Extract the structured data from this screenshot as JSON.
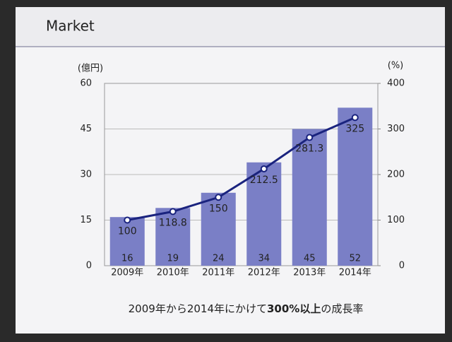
{
  "header": {
    "title": "Market"
  },
  "chart_data": {
    "type": "combo",
    "categories": [
      "2009年",
      "2010年",
      "2011年",
      "2012年",
      "2013年",
      "2014年"
    ],
    "series": [
      {
        "type": "bar",
        "color": "#7a7fc6",
        "values": [
          16,
          19,
          24,
          34,
          45,
          52
        ]
      },
      {
        "type": "line",
        "axis": "y2",
        "color": "#1a237e",
        "values": [
          100,
          118.8,
          150,
          212.5,
          281.3,
          325
        ]
      }
    ],
    "ylabel": "(億円)",
    "y2label": "(%)",
    "ylim": [
      0,
      60
    ],
    "yticks": [
      0,
      15,
      30,
      45,
      60
    ],
    "y2lim": [
      0,
      400
    ],
    "y2ticks": [
      0,
      100,
      200,
      300,
      400
    ],
    "grid": true,
    "caption": [
      "2009年から2014年にかけて",
      "300%以上",
      "の成長率"
    ]
  }
}
